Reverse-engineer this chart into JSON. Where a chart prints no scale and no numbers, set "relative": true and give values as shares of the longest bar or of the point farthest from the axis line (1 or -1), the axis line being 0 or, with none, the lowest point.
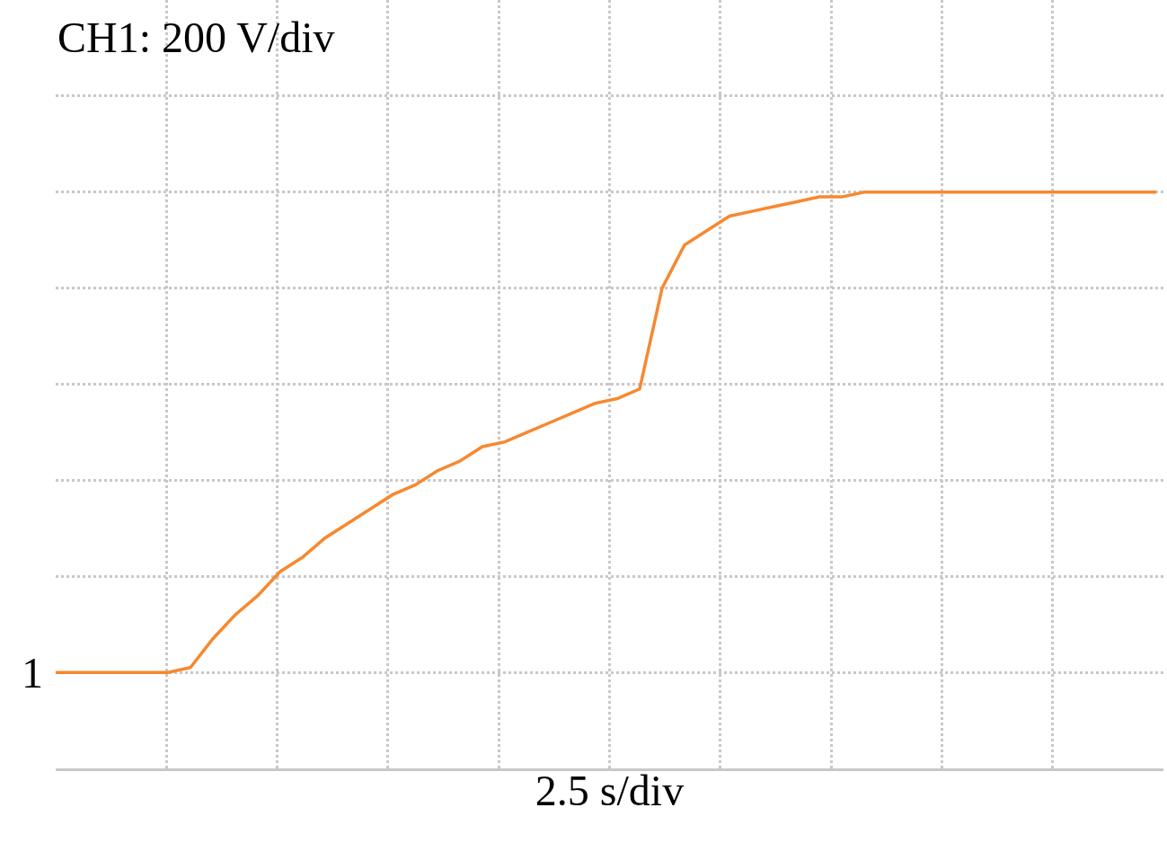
{
  "chart_data": {
    "type": "line",
    "relative": true,
    "xlabel": "2.5 s/div",
    "grid": true,
    "marker": "none",
    "line_style": "solid",
    "annotations": [
      "CH1: 200 V/div",
      "1"
    ],
    "categories": [
      null,
      null,
      null,
      null,
      null,
      null,
      null,
      null,
      null,
      null,
      null,
      null,
      null,
      null,
      null,
      null,
      null,
      null,
      null,
      null,
      null,
      null,
      null,
      null,
      null,
      null,
      null,
      null,
      null,
      null,
      null,
      null,
      null,
      null,
      null,
      null,
      null,
      null,
      null,
      null,
      null,
      null,
      null,
      null,
      null,
      null,
      null,
      null,
      null,
      null
    ],
    "series": [
      {
        "color": "#f7882f",
        "values": [
          0,
          0,
          0,
          0,
          0,
          0,
          0.01,
          0.07,
          0.12,
          0.16,
          0.21,
          0.24,
          0.28,
          0.31,
          0.34,
          0.37,
          0.39,
          0.42,
          0.44,
          0.47,
          0.48,
          0.5,
          0.52,
          0.54,
          0.56,
          0.57,
          0.59,
          0.8,
          0.89,
          0.92,
          0.95,
          0.96,
          0.97,
          0.98,
          0.99,
          0.99,
          1,
          1,
          1,
          1,
          1,
          1,
          1,
          1,
          1,
          1,
          1,
          1,
          1,
          1
        ]
      }
    ]
  }
}
